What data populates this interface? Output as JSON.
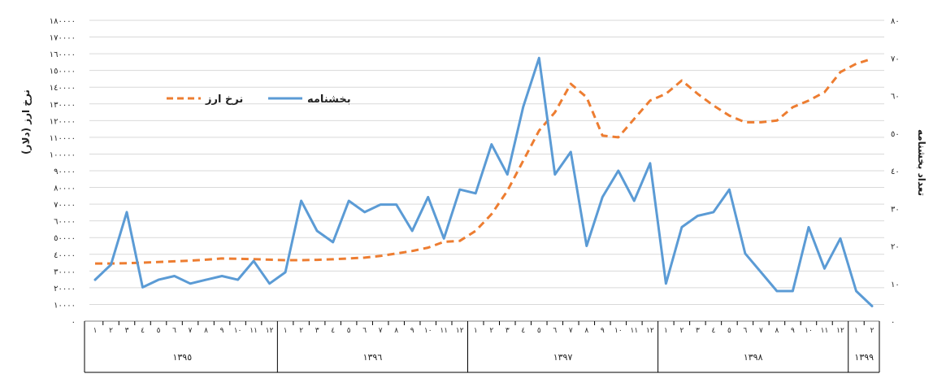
{
  "chart_data": {
    "type": "line",
    "left_axis": {
      "title": "نرخ ارز (دلار)",
      "ticks": [
        "٠",
        "١٠٠٠٠",
        "٢٠٠٠٠",
        "٣٠٠٠٠",
        "٤٠٠٠٠",
        "٥٠٠٠٠",
        "٦٠٠٠٠",
        "٧٠٠٠٠",
        "٨٠٠٠٠",
        "٩٠٠٠٠",
        "١٠٠٠٠٠",
        "١١٠٠٠٠",
        "١٢٠٠٠٠",
        "١٣٠٠٠٠",
        "١٤٠٠٠٠",
        "١٥٠٠٠٠",
        "١٦٠٠٠٠",
        "١٧٠٠٠٠",
        "١٨٠٠٠٠"
      ],
      "range": [
        0,
        180000
      ]
    },
    "right_axis": {
      "title": "تعداد بخشنامه",
      "ticks": [
        "٠",
        "١٠",
        "٢٠",
        "٣٠",
        "٤٠",
        "٥٠",
        "٦٠",
        "٧٠",
        "٨٠"
      ],
      "range": [
        0,
        80
      ]
    },
    "month_labels": [
      "١",
      "٢",
      "٣",
      "٤",
      "٥",
      "٦",
      "٧",
      "٨",
      "٩",
      "١٠",
      "١١",
      "١٢"
    ],
    "month_labels_1399": [
      "١",
      "٢"
    ],
    "years": [
      "١٣٩٥",
      "١٣٩٦",
      "١٣٩٧",
      "١٣٩٨",
      "١٣٩٩"
    ],
    "grid": "horizontal",
    "series": [
      {
        "name": "بخشنامه",
        "axis": "right",
        "color": "#5b9bd5",
        "style": "solid",
        "values": [
          11,
          15,
          29,
          9,
          11,
          12,
          10,
          11,
          12,
          11,
          16,
          10,
          13,
          32,
          24,
          21,
          32,
          29,
          31,
          31,
          24,
          33,
          22,
          35,
          34,
          47,
          39,
          57,
          70,
          39,
          45,
          20,
          33,
          40,
          32,
          42,
          10,
          25,
          28,
          29,
          35,
          18,
          13,
          8,
          8,
          25,
          14,
          22,
          8,
          4
        ]
      },
      {
        "name": "نرخ ارز",
        "axis": "left",
        "color": "#ed7d31",
        "style": "dashed",
        "values": [
          34500,
          34500,
          34700,
          35000,
          35400,
          35800,
          36200,
          36800,
          37500,
          37300,
          37100,
          36800,
          36500,
          36500,
          36700,
          37000,
          37500,
          38000,
          39000,
          40500,
          42000,
          44000,
          47500,
          48000,
          54000,
          64000,
          78000,
          96000,
          114000,
          125000,
          142000,
          134000,
          111000,
          110000,
          121000,
          132000,
          136000,
          144000,
          136000,
          129000,
          123000,
          119000,
          119000,
          120000,
          128000,
          132000,
          137000,
          149000,
          154000,
          157000
        ]
      }
    ],
    "legend": "top-left"
  }
}
